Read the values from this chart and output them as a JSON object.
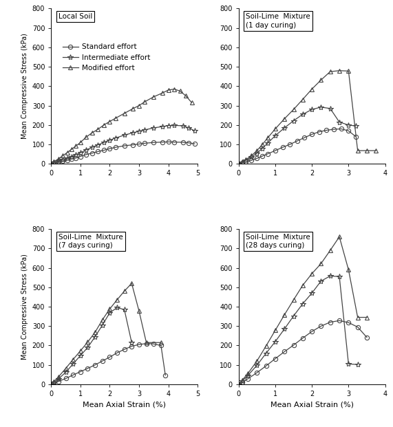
{
  "panels": [
    {
      "title": "Local Soil",
      "xlim": [
        0,
        5
      ],
      "ylim": [
        0,
        800
      ],
      "xticks": [
        0,
        1,
        2,
        3,
        4,
        5
      ],
      "yticks": [
        0,
        100,
        200,
        300,
        400,
        500,
        600,
        700,
        800
      ],
      "series": [
        {
          "label": "Standard effort",
          "marker": "o",
          "x": [
            0,
            0.1,
            0.25,
            0.4,
            0.55,
            0.7,
            0.85,
            1.0,
            1.2,
            1.4,
            1.6,
            1.8,
            2.0,
            2.2,
            2.5,
            2.8,
            3.0,
            3.2,
            3.5,
            3.8,
            4.0,
            4.2,
            4.5,
            4.7,
            4.9
          ],
          "y": [
            0,
            5,
            10,
            15,
            20,
            25,
            30,
            38,
            48,
            55,
            63,
            70,
            78,
            85,
            93,
            98,
            102,
            106,
            110,
            112,
            113,
            112,
            111,
            108,
            103
          ]
        },
        {
          "label": "Intermediate effort",
          "marker": "*",
          "x": [
            0,
            0.1,
            0.25,
            0.4,
            0.55,
            0.7,
            0.85,
            1.0,
            1.2,
            1.4,
            1.6,
            1.8,
            2.0,
            2.2,
            2.5,
            2.8,
            3.0,
            3.2,
            3.5,
            3.8,
            4.0,
            4.2,
            4.5,
            4.7,
            4.9
          ],
          "y": [
            0,
            8,
            15,
            22,
            30,
            38,
            47,
            57,
            72,
            85,
            98,
            110,
            122,
            133,
            148,
            160,
            168,
            175,
            185,
            192,
            197,
            198,
            196,
            185,
            170
          ]
        },
        {
          "label": "Modified effort",
          "marker": "^",
          "x": [
            0,
            0.1,
            0.25,
            0.4,
            0.55,
            0.7,
            0.85,
            1.0,
            1.2,
            1.4,
            1.6,
            1.8,
            2.0,
            2.2,
            2.5,
            2.8,
            3.0,
            3.2,
            3.5,
            3.8,
            4.0,
            4.2,
            4.4,
            4.6,
            4.8
          ],
          "y": [
            0,
            12,
            25,
            42,
            58,
            75,
            92,
            110,
            138,
            160,
            178,
            200,
            218,
            235,
            260,
            285,
            300,
            320,
            345,
            365,
            380,
            385,
            375,
            350,
            315
          ]
        }
      ]
    },
    {
      "title": "Soil-Lime  Mixture\n(1 day curing)",
      "xlim": [
        0,
        4
      ],
      "ylim": [
        0,
        800
      ],
      "xticks": [
        0,
        1,
        2,
        3,
        4
      ],
      "yticks": [
        0,
        100,
        200,
        300,
        400,
        500,
        600,
        700,
        800
      ],
      "series": [
        {
          "label": "Standard effort",
          "marker": "o",
          "x": [
            0,
            0.1,
            0.2,
            0.35,
            0.5,
            0.65,
            0.8,
            1.0,
            1.2,
            1.4,
            1.6,
            1.8,
            2.0,
            2.2,
            2.4,
            2.6,
            2.8,
            3.0,
            3.2
          ],
          "y": [
            0,
            5,
            10,
            18,
            28,
            40,
            52,
            68,
            85,
            100,
            118,
            135,
            152,
            165,
            173,
            178,
            180,
            170,
            140
          ]
        },
        {
          "label": "Intermediate effort",
          "marker": "*",
          "x": [
            0,
            0.1,
            0.2,
            0.35,
            0.5,
            0.65,
            0.8,
            1.0,
            1.25,
            1.5,
            1.75,
            2.0,
            2.25,
            2.5,
            2.75,
            3.0,
            3.2
          ],
          "y": [
            0,
            8,
            18,
            35,
            55,
            80,
            108,
            145,
            185,
            222,
            255,
            280,
            292,
            285,
            215,
            200,
            195
          ]
        },
        {
          "label": "Modified effort",
          "marker": "^",
          "x": [
            0,
            0.1,
            0.2,
            0.35,
            0.5,
            0.65,
            0.8,
            1.0,
            1.25,
            1.5,
            1.75,
            2.0,
            2.25,
            2.5,
            2.75,
            3.0,
            3.25,
            3.5,
            3.75
          ],
          "y": [
            0,
            10,
            22,
            42,
            68,
            100,
            135,
            180,
            232,
            280,
            332,
            385,
            432,
            475,
            480,
            478,
            68,
            68,
            68
          ]
        }
      ]
    },
    {
      "title": "Soil-Lime  Mixture\n(7 days curing)",
      "xlim": [
        0,
        5
      ],
      "ylim": [
        0,
        800
      ],
      "xticks": [
        0,
        1,
        2,
        3,
        4,
        5
      ],
      "yticks": [
        0,
        100,
        200,
        300,
        400,
        500,
        600,
        700,
        800
      ],
      "series": [
        {
          "label": "Standard effort",
          "marker": "o",
          "x": [
            0,
            0.1,
            0.25,
            0.5,
            0.75,
            1.0,
            1.25,
            1.5,
            1.75,
            2.0,
            2.25,
            2.5,
            2.75,
            3.0,
            3.25,
            3.5,
            3.75,
            3.9
          ],
          "y": [
            0,
            5,
            15,
            30,
            48,
            65,
            82,
            100,
            120,
            140,
            162,
            180,
            196,
            205,
            210,
            208,
            200,
            47
          ]
        },
        {
          "label": "Intermediate effort",
          "marker": "*",
          "x": [
            0,
            0.1,
            0.25,
            0.5,
            0.75,
            1.0,
            1.25,
            1.5,
            1.75,
            2.0,
            2.25,
            2.5,
            2.75
          ],
          "y": [
            0,
            10,
            28,
            62,
            105,
            148,
            190,
            245,
            305,
            368,
            395,
            385,
            215
          ]
        },
        {
          "label": "Modified effort",
          "marker": "^",
          "x": [
            0,
            0.1,
            0.25,
            0.5,
            0.75,
            1.0,
            1.25,
            1.5,
            1.75,
            2.0,
            2.25,
            2.5,
            2.75,
            3.0,
            3.25,
            3.75
          ],
          "y": [
            0,
            15,
            38,
            82,
            128,
            172,
            218,
            268,
            332,
            388,
            435,
            480,
            520,
            378,
            215,
            215
          ]
        }
      ]
    },
    {
      "title": "Soil-Lime  Mixture\n(28 days curing)",
      "xlim": [
        0,
        4
      ],
      "ylim": [
        0,
        800
      ],
      "xticks": [
        0,
        1,
        2,
        3,
        4
      ],
      "yticks": [
        0,
        100,
        200,
        300,
        400,
        500,
        600,
        700,
        800
      ],
      "series": [
        {
          "label": "Standard effort",
          "marker": "o",
          "x": [
            0,
            0.1,
            0.25,
            0.5,
            0.75,
            1.0,
            1.25,
            1.5,
            1.75,
            2.0,
            2.25,
            2.5,
            2.75,
            3.0,
            3.25,
            3.5
          ],
          "y": [
            0,
            12,
            28,
            60,
            95,
            132,
            168,
            202,
            238,
            272,
            300,
            320,
            328,
            318,
            295,
            242
          ]
        },
        {
          "label": "Intermediate effort",
          "marker": "*",
          "x": [
            0,
            0.1,
            0.25,
            0.5,
            0.75,
            1.0,
            1.25,
            1.5,
            1.75,
            2.0,
            2.25,
            2.5,
            2.75,
            3.0,
            3.25
          ],
          "y": [
            0,
            18,
            45,
            98,
            160,
            220,
            285,
            352,
            415,
            470,
            532,
            558,
            555,
            105,
            102
          ]
        },
        {
          "label": "Modified effort",
          "marker": "^",
          "x": [
            0,
            0.1,
            0.25,
            0.5,
            0.75,
            1.0,
            1.25,
            1.5,
            1.75,
            2.0,
            2.25,
            2.5,
            2.75,
            3.0,
            3.25,
            3.5
          ],
          "y": [
            0,
            22,
            55,
            120,
            198,
            278,
            358,
            435,
            510,
            570,
            622,
            690,
            760,
            590,
            345,
            345
          ]
        }
      ]
    }
  ],
  "color": "#444444",
  "linewidth": 0.9,
  "markersize_circle": 4.5,
  "markersize_star": 6,
  "markersize_tri": 5,
  "xlabel": "Mean Axial Strain (%)",
  "ylabel": "Mean Compressive Stress (kPa)",
  "bg_color": "#ffffff"
}
